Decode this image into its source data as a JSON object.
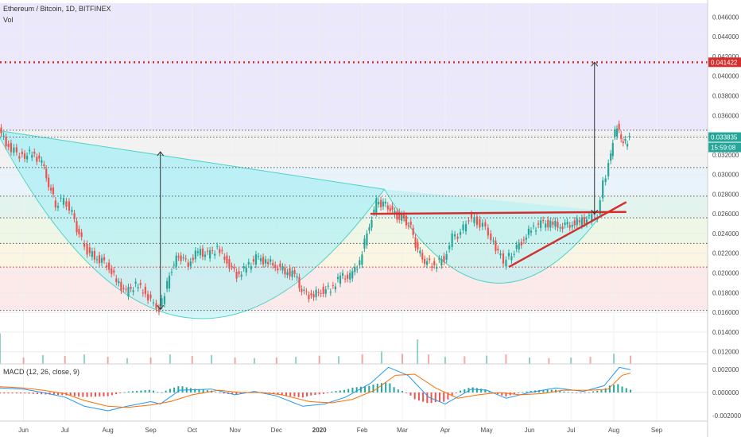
{
  "header": {
    "symbol": "Ethereum / Bitcoin, 1D, BITFINEX",
    "volume_label": "Vol"
  },
  "macd": {
    "label": "MACD (12, 26, close, 9)",
    "ticks": [
      "0.002000",
      "0.000000",
      "-0.002000"
    ]
  },
  "price_tags": {
    "target": "0.041422",
    "last": "0.033835",
    "countdown": "15:59:08"
  },
  "colors": {
    "up": "#26a69a",
    "down": "#ef5350",
    "level": "#d32f2f",
    "macd": "#2196f3",
    "signal": "#ff6d00"
  },
  "chart_data": {
    "type": "candlestick",
    "title": "Ethereum / Bitcoin, 1D, BITFINEX",
    "y_ticks": [
      "0.046000",
      "0.044000",
      "0.042000",
      "0.040000",
      "0.038000",
      "0.036000",
      "0.034000",
      "0.032000",
      "0.030000",
      "0.028000",
      "0.026000",
      "0.024000",
      "0.022000",
      "0.020000",
      "0.018000",
      "0.016000",
      "0.014000",
      "0.012000"
    ],
    "x_ticks": [
      "Jun",
      "Jul",
      "Aug",
      "Sep",
      "Oct",
      "Nov",
      "Dec",
      "2020",
      "Feb",
      "Mar",
      "Apr",
      "May",
      "Jun",
      "Jul",
      "Aug",
      "Sep"
    ],
    "ylim": [
      0.0106,
      0.0474
    ],
    "price_series": [
      [
        "2019-05-15",
        0.0345
      ],
      [
        "2019-05-22",
        0.0328
      ],
      [
        "2019-06-01",
        0.0318
      ],
      [
        "2019-06-08",
        0.0322
      ],
      [
        "2019-06-15",
        0.0312
      ],
      [
        "2019-06-20",
        0.029
      ],
      [
        "2019-06-25",
        0.027
      ],
      [
        "2019-07-01",
        0.0275
      ],
      [
        "2019-07-07",
        0.026
      ],
      [
        "2019-07-12",
        0.0238
      ],
      [
        "2019-07-18",
        0.0222
      ],
      [
        "2019-07-25",
        0.0215
      ],
      [
        "2019-08-01",
        0.021
      ],
      [
        "2019-08-08",
        0.0192
      ],
      [
        "2019-08-15",
        0.018
      ],
      [
        "2019-08-22",
        0.0188
      ],
      [
        "2019-08-29",
        0.018
      ],
      [
        "2019-09-04",
        0.0168
      ],
      [
        "2019-09-08",
        0.0163
      ],
      [
        "2019-09-12",
        0.018
      ],
      [
        "2019-09-17",
        0.0205
      ],
      [
        "2019-09-22",
        0.0218
      ],
      [
        "2019-09-29",
        0.021
      ],
      [
        "2019-10-06",
        0.0222
      ],
      [
        "2019-10-13",
        0.0218
      ],
      [
        "2019-10-20",
        0.0225
      ],
      [
        "2019-10-27",
        0.0212
      ],
      [
        "2019-11-03",
        0.0198
      ],
      [
        "2019-11-10",
        0.0205
      ],
      [
        "2019-11-17",
        0.0215
      ],
      [
        "2019-11-24",
        0.0212
      ],
      [
        "2019-12-01",
        0.0208
      ],
      [
        "2019-12-08",
        0.0202
      ],
      [
        "2019-12-15",
        0.0198
      ],
      [
        "2019-12-20",
        0.0182
      ],
      [
        "2019-12-27",
        0.0176
      ],
      [
        "2020-01-03",
        0.0182
      ],
      [
        "2020-01-10",
        0.0184
      ],
      [
        "2020-01-17",
        0.0196
      ],
      [
        "2020-01-24",
        0.0196
      ],
      [
        "2020-01-31",
        0.0212
      ],
      [
        "2020-02-07",
        0.025
      ],
      [
        "2020-02-12",
        0.0272
      ],
      [
        "2020-02-17",
        0.027
      ],
      [
        "2020-02-22",
        0.0265
      ],
      [
        "2020-02-27",
        0.0258
      ],
      [
        "2020-03-03",
        0.0255
      ],
      [
        "2020-03-08",
        0.0245
      ],
      [
        "2020-03-13",
        0.0222
      ],
      [
        "2020-03-18",
        0.0212
      ],
      [
        "2020-03-25",
        0.0208
      ],
      [
        "2020-04-01",
        0.0215
      ],
      [
        "2020-04-07",
        0.0236
      ],
      [
        "2020-04-13",
        0.024
      ],
      [
        "2020-04-19",
        0.0256
      ],
      [
        "2020-04-25",
        0.0252
      ],
      [
        "2020-05-01",
        0.0246
      ],
      [
        "2020-05-05",
        0.0235
      ],
      [
        "2020-05-10",
        0.0222
      ],
      [
        "2020-05-14",
        0.021
      ],
      [
        "2020-05-20",
        0.022
      ],
      [
        "2020-05-27",
        0.0232
      ],
      [
        "2020-06-03",
        0.0244
      ],
      [
        "2020-06-10",
        0.025
      ],
      [
        "2020-06-17",
        0.025
      ],
      [
        "2020-06-24",
        0.0248
      ],
      [
        "2020-07-01",
        0.025
      ],
      [
        "2020-07-08",
        0.0252
      ],
      [
        "2020-07-15",
        0.0255
      ],
      [
        "2020-07-21",
        0.026
      ],
      [
        "2020-07-25",
        0.029
      ],
      [
        "2020-07-29",
        0.031
      ],
      [
        "2020-08-01",
        0.0335
      ],
      [
        "2020-08-04",
        0.035
      ],
      [
        "2020-08-07",
        0.0335
      ],
      [
        "2020-08-10",
        0.0332
      ],
      [
        "2020-08-13",
        0.0338
      ]
    ],
    "volume_series": [
      [
        "2019-05-15",
        0.01
      ],
      [
        "2019-06-01",
        0.002
      ],
      [
        "2019-06-15",
        0.0028
      ],
      [
        "2019-07-01",
        0.0025
      ],
      [
        "2019-07-15",
        0.003
      ],
      [
        "2019-08-01",
        0.0022
      ],
      [
        "2019-08-15",
        0.0018
      ],
      [
        "2019-09-01",
        0.002
      ],
      [
        "2019-09-15",
        0.003
      ],
      [
        "2019-10-01",
        0.0025
      ],
      [
        "2019-10-15",
        0.0028
      ],
      [
        "2019-11-01",
        0.002
      ],
      [
        "2019-11-15",
        0.0018
      ],
      [
        "2019-12-01",
        0.002
      ],
      [
        "2019-12-15",
        0.0022
      ],
      [
        "2020-01-01",
        0.0026
      ],
      [
        "2020-01-15",
        0.0024
      ],
      [
        "2020-02-01",
        0.003
      ],
      [
        "2020-02-15",
        0.004
      ],
      [
        "2020-03-01",
        0.0032
      ],
      [
        "2020-03-12",
        0.008
      ],
      [
        "2020-03-20",
        0.003
      ],
      [
        "2020-04-01",
        0.0022
      ],
      [
        "2020-04-15",
        0.0024
      ],
      [
        "2020-05-01",
        0.0026
      ],
      [
        "2020-05-15",
        0.003
      ],
      [
        "2020-06-01",
        0.002
      ],
      [
        "2020-06-15",
        0.0018
      ],
      [
        "2020-07-01",
        0.002
      ],
      [
        "2020-07-15",
        0.0022
      ],
      [
        "2020-08-01",
        0.0032
      ],
      [
        "2020-08-13",
        0.0026
      ]
    ],
    "macd_series": [
      [
        "2019-05-15",
        0.0004
      ],
      [
        "2019-06-01",
        0.0003
      ],
      [
        "2019-06-15",
        0.0
      ],
      [
        "2019-07-01",
        -0.0004
      ],
      [
        "2019-07-15",
        -0.0012
      ],
      [
        "2019-08-01",
        -0.0016
      ],
      [
        "2019-08-15",
        -0.0012
      ],
      [
        "2019-09-01",
        -0.0008
      ],
      [
        "2019-09-08",
        -0.001
      ],
      [
        "2019-09-22",
        0.0002
      ],
      [
        "2019-10-15",
        0.0003
      ],
      [
        "2019-11-01",
        -0.0002
      ],
      [
        "2019-11-15",
        0.0001
      ],
      [
        "2019-12-01",
        -0.0003
      ],
      [
        "2019-12-20",
        -0.0012
      ],
      [
        "2020-01-05",
        -0.001
      ],
      [
        "2020-01-20",
        -0.0004
      ],
      [
        "2020-02-07",
        0.0008
      ],
      [
        "2020-02-20",
        0.0022
      ],
      [
        "2020-03-05",
        0.0015
      ],
      [
        "2020-03-20",
        -0.0004
      ],
      [
        "2020-04-01",
        -0.001
      ],
      [
        "2020-04-20",
        0.0003
      ],
      [
        "2020-05-01",
        0.0002
      ],
      [
        "2020-05-15",
        -0.0005
      ],
      [
        "2020-06-01",
        0.0
      ],
      [
        "2020-06-20",
        0.0004
      ],
      [
        "2020-07-10",
        0.0001
      ],
      [
        "2020-07-25",
        0.0006
      ],
      [
        "2020-08-05",
        0.0022
      ],
      [
        "2020-08-13",
        0.002
      ]
    ],
    "signal_series": [
      [
        "2019-05-15",
        0.0005
      ],
      [
        "2019-06-01",
        0.0004
      ],
      [
        "2019-06-15",
        0.0002
      ],
      [
        "2019-07-01",
        -0.0001
      ],
      [
        "2019-07-15",
        -0.0007
      ],
      [
        "2019-08-01",
        -0.0012
      ],
      [
        "2019-08-15",
        -0.0013
      ],
      [
        "2019-09-01",
        -0.0011
      ],
      [
        "2019-09-15",
        -0.0008
      ],
      [
        "2019-10-01",
        -0.0002
      ],
      [
        "2019-10-20",
        0.0002
      ],
      [
        "2019-11-05",
        0.0
      ],
      [
        "2019-11-20",
        0.0
      ],
      [
        "2019-12-05",
        -0.0002
      ],
      [
        "2019-12-25",
        -0.0008
      ],
      [
        "2020-01-10",
        -0.0009
      ],
      [
        "2020-01-25",
        -0.0006
      ],
      [
        "2020-02-10",
        0.0002
      ],
      [
        "2020-02-25",
        0.0015
      ],
      [
        "2020-03-10",
        0.0016
      ],
      [
        "2020-03-25",
        0.0004
      ],
      [
        "2020-04-10",
        -0.0005
      ],
      [
        "2020-04-25",
        -0.0002
      ],
      [
        "2020-05-10",
        0.0
      ],
      [
        "2020-05-25",
        -0.0002
      ],
      [
        "2020-06-10",
        -0.0001
      ],
      [
        "2020-06-25",
        0.0002
      ],
      [
        "2020-07-15",
        0.0002
      ],
      [
        "2020-07-28",
        0.0003
      ],
      [
        "2020-08-07",
        0.0015
      ],
      [
        "2020-08-13",
        0.0017
      ]
    ],
    "horizontal_levels": [
      0.0414,
      0.0345,
      0.0338,
      0.0307,
      0.0278,
      0.0256,
      0.023,
      0.0206,
      0.0162
    ],
    "support_line": [
      [
        "2020-02-07",
        0.026
      ],
      [
        "2020-08-10",
        0.0262
      ]
    ],
    "rising_trendline": [
      [
        "2020-05-17",
        0.0206
      ],
      [
        "2020-08-10",
        0.0272
      ]
    ],
    "measure_arrows": [
      [
        [
          "2019-09-08",
          0.0163
        ],
        [
          "2019-09-08",
          0.0323
        ]
      ],
      [
        [
          "2020-07-18",
          0.026
        ],
        [
          "2020-07-18",
          0.0414
        ]
      ]
    ],
    "cup": [
      [
        "2019-05-12",
        0.0345
      ],
      [
        "2019-09-25",
        0.0155
      ],
      [
        "2020-02-17",
        0.0285
      ]
    ],
    "second_cup": [
      [
        "2020-02-17",
        0.0285
      ],
      [
        "2020-05-05",
        0.019
      ],
      [
        "2020-07-25",
        0.0263
      ]
    ]
  }
}
